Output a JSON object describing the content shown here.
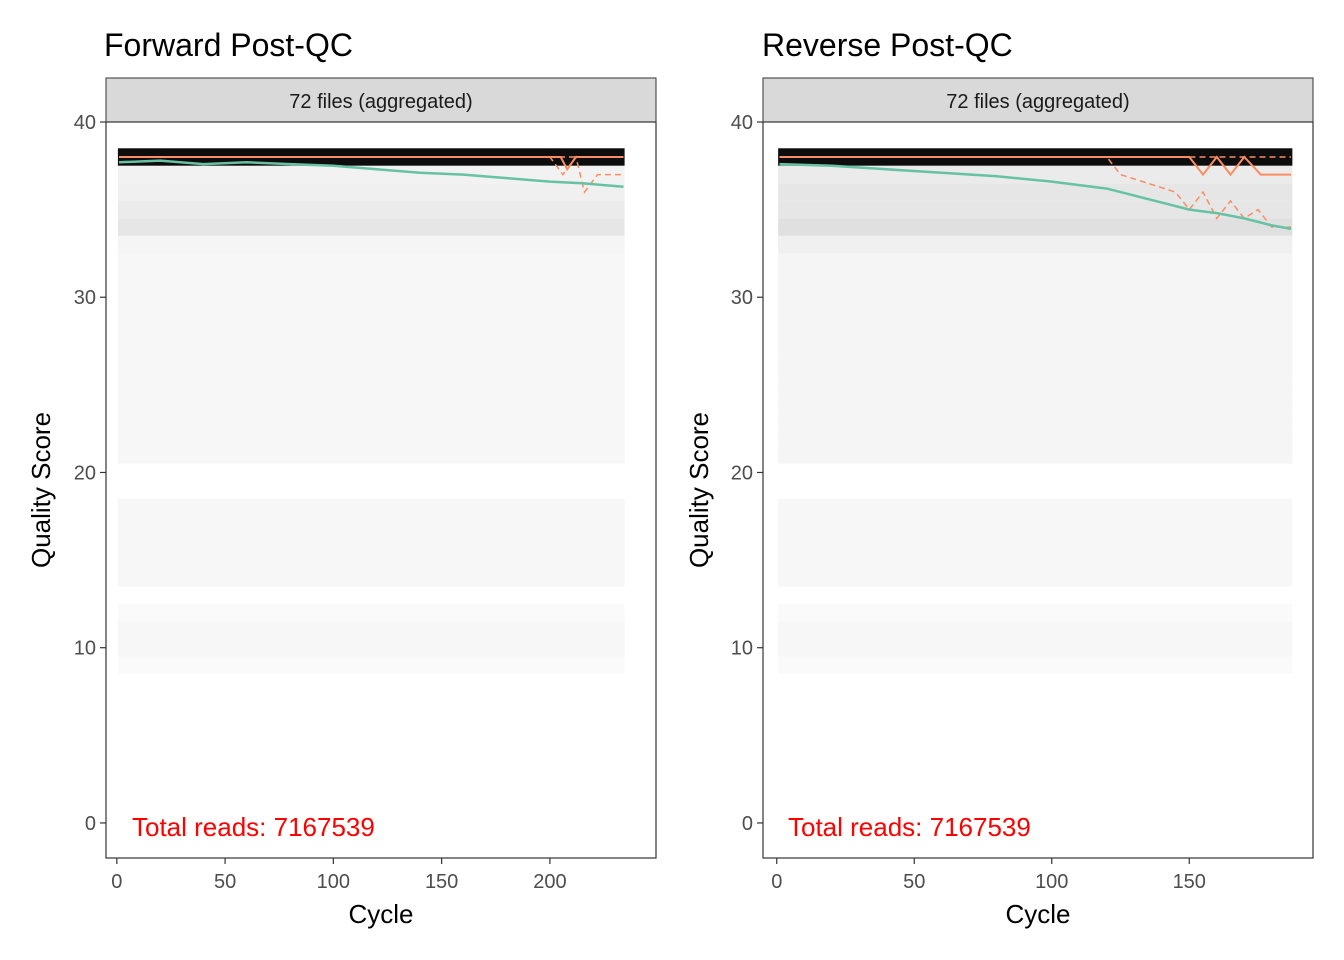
{
  "chart_data": [
    {
      "type": "heatmap",
      "title": "Forward Post-QC",
      "facet_label": "72 files (aggregated)",
      "xlabel": "Cycle",
      "ylabel": "Quality Score",
      "xlim": [
        -5,
        249
      ],
      "ylim": [
        -2,
        40
      ],
      "xticks": [
        0,
        50,
        100,
        150,
        200
      ],
      "yticks": [
        0,
        10,
        20,
        30,
        40
      ],
      "annotation": "Total reads: 7167539",
      "cycles": 234,
      "heatmap_rows": [
        {
          "q": 38,
          "shade": 0.95
        },
        {
          "q": 37,
          "shade": 0.05
        },
        {
          "q": 36,
          "shade": 0.06
        },
        {
          "q": 35,
          "shade": 0.08
        },
        {
          "q": 34,
          "shade": 0.1
        },
        {
          "q": 33,
          "shade": 0.04
        },
        {
          "q": 32,
          "shade": 0.03
        },
        {
          "q": 31,
          "shade": 0.03
        },
        {
          "q": 30,
          "shade": 0.03
        },
        {
          "q": 29,
          "shade": 0.03
        },
        {
          "q": 28,
          "shade": 0.03
        },
        {
          "q": 27,
          "shade": 0.03
        },
        {
          "q": 26,
          "shade": 0.03
        },
        {
          "q": 25,
          "shade": 0.03
        },
        {
          "q": 24,
          "shade": 0.03
        },
        {
          "q": 23,
          "shade": 0.03
        },
        {
          "q": 22,
          "shade": 0.03
        },
        {
          "q": 21,
          "shade": 0.03
        },
        {
          "q": 18,
          "shade": 0.03
        },
        {
          "q": 17,
          "shade": 0.03
        },
        {
          "q": 16,
          "shade": 0.03
        },
        {
          "q": 15,
          "shade": 0.03
        },
        {
          "q": 14,
          "shade": 0.03
        },
        {
          "q": 12,
          "shade": 0.02
        },
        {
          "q": 11,
          "shade": 0.03
        },
        {
          "q": 10,
          "shade": 0.03
        },
        {
          "q": 9,
          "shade": 0.02
        }
      ],
      "mean_quality": [
        [
          1,
          37.7
        ],
        [
          20,
          37.8
        ],
        [
          40,
          37.6
        ],
        [
          60,
          37.7
        ],
        [
          80,
          37.6
        ],
        [
          100,
          37.5
        ],
        [
          120,
          37.3
        ],
        [
          140,
          37.1
        ],
        [
          160,
          37.0
        ],
        [
          180,
          36.8
        ],
        [
          200,
          36.6
        ],
        [
          215,
          36.5
        ],
        [
          225,
          36.4
        ],
        [
          234,
          36.3
        ]
      ],
      "median_quality": [
        [
          1,
          38
        ],
        [
          205,
          38
        ],
        [
          208,
          37.3
        ],
        [
          212,
          38
        ],
        [
          234,
          38
        ]
      ],
      "quartile_25": [
        [
          1,
          38
        ],
        [
          200,
          38
        ],
        [
          206,
          37
        ],
        [
          212,
          38
        ],
        [
          216,
          36
        ],
        [
          222,
          37
        ],
        [
          234,
          37
        ]
      ],
      "quartile_75": [
        [
          1,
          38
        ],
        [
          234,
          38
        ]
      ]
    },
    {
      "type": "heatmap",
      "title": "Reverse Post-QC",
      "facet_label": "72 files (aggregated)",
      "xlabel": "Cycle",
      "ylabel": "Quality Score",
      "xlim": [
        -5,
        195
      ],
      "ylim": [
        -2,
        40
      ],
      "xticks": [
        0,
        50,
        100,
        150
      ],
      "yticks": [
        0,
        10,
        20,
        30,
        40
      ],
      "annotation": "Total reads: 7167539",
      "cycles": 187,
      "heatmap_rows": [
        {
          "q": 38,
          "shade": 0.95
        },
        {
          "q": 37,
          "shade": 0.08
        },
        {
          "q": 36,
          "shade": 0.1
        },
        {
          "q": 35,
          "shade": 0.1
        },
        {
          "q": 34,
          "shade": 0.12
        },
        {
          "q": 33,
          "shade": 0.06
        },
        {
          "q": 32,
          "shade": 0.04
        },
        {
          "q": 31,
          "shade": 0.04
        },
        {
          "q": 30,
          "shade": 0.04
        },
        {
          "q": 29,
          "shade": 0.04
        },
        {
          "q": 28,
          "shade": 0.04
        },
        {
          "q": 27,
          "shade": 0.04
        },
        {
          "q": 26,
          "shade": 0.04
        },
        {
          "q": 25,
          "shade": 0.04
        },
        {
          "q": 24,
          "shade": 0.04
        },
        {
          "q": 23,
          "shade": 0.04
        },
        {
          "q": 22,
          "shade": 0.04
        },
        {
          "q": 21,
          "shade": 0.04
        },
        {
          "q": 18,
          "shade": 0.03
        },
        {
          "q": 17,
          "shade": 0.03
        },
        {
          "q": 16,
          "shade": 0.03
        },
        {
          "q": 15,
          "shade": 0.03
        },
        {
          "q": 14,
          "shade": 0.03
        },
        {
          "q": 12,
          "shade": 0.02
        },
        {
          "q": 11,
          "shade": 0.03
        },
        {
          "q": 10,
          "shade": 0.03
        },
        {
          "q": 9,
          "shade": 0.02
        }
      ],
      "mean_quality": [
        [
          1,
          37.6
        ],
        [
          20,
          37.5
        ],
        [
          40,
          37.3
        ],
        [
          60,
          37.1
        ],
        [
          80,
          36.9
        ],
        [
          100,
          36.6
        ],
        [
          120,
          36.2
        ],
        [
          130,
          35.8
        ],
        [
          140,
          35.4
        ],
        [
          150,
          35.0
        ],
        [
          160,
          34.8
        ],
        [
          170,
          34.5
        ],
        [
          180,
          34.1
        ],
        [
          187,
          33.9
        ]
      ],
      "median_quality": [
        [
          1,
          38
        ],
        [
          140,
          38
        ],
        [
          150,
          38
        ],
        [
          155,
          37
        ],
        [
          160,
          38
        ],
        [
          165,
          37
        ],
        [
          170,
          38
        ],
        [
          176,
          37
        ],
        [
          187,
          37
        ]
      ],
      "quartile_25": [
        [
          1,
          38
        ],
        [
          120,
          38
        ],
        [
          125,
          37
        ],
        [
          135,
          36.5
        ],
        [
          145,
          36
        ],
        [
          150,
          35
        ],
        [
          155,
          36
        ],
        [
          160,
          34.5
        ],
        [
          165,
          35.5
        ],
        [
          170,
          34.5
        ],
        [
          175,
          35
        ],
        [
          180,
          34
        ],
        [
          187,
          34
        ]
      ],
      "quartile_75": [
        [
          1,
          38
        ],
        [
          187,
          38
        ]
      ]
    }
  ],
  "colors": {
    "mean_line": "#66c2a5",
    "quartile_line": "#fc8d62",
    "annotation": "#ff0000",
    "strip_fill": "#d9d9d9"
  }
}
